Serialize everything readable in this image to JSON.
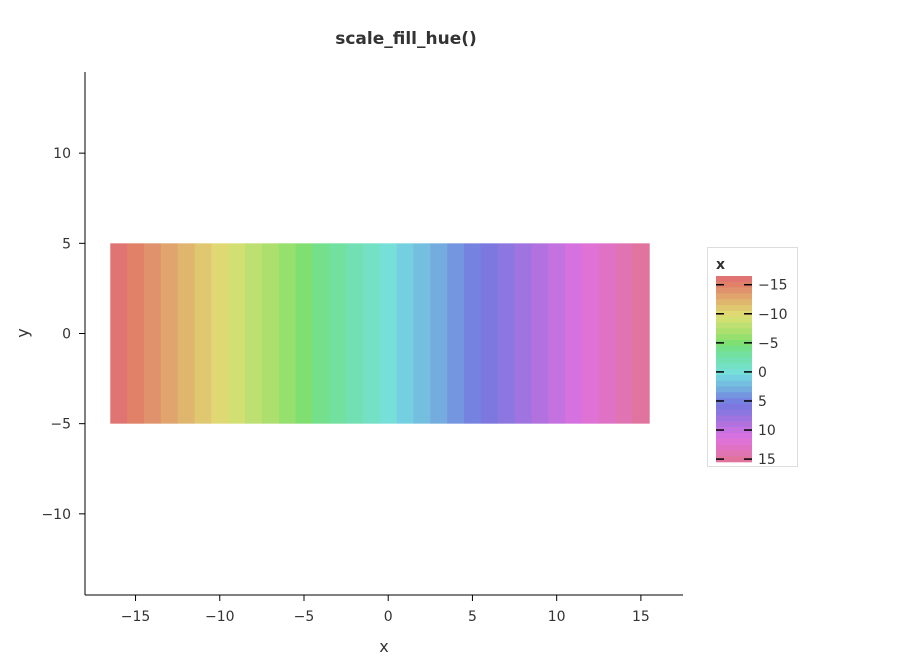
{
  "chart_data": {
    "type": "heatmap",
    "title": "scale_fill_hue()",
    "xlabel": "x",
    "ylabel": "y",
    "x": [
      -16,
      -15,
      -14,
      -13,
      -12,
      -11,
      -10,
      -9,
      -8,
      -7,
      -6,
      -5,
      -4,
      -3,
      -2,
      -1,
      0,
      1,
      2,
      3,
      4,
      5,
      6,
      7,
      8,
      9,
      10,
      11,
      12,
      13,
      14,
      15
    ],
    "y_range": [
      -5,
      5
    ],
    "xlim": [
      -18,
      17.5
    ],
    "ylim": [
      -14.5,
      14.5
    ],
    "xticks": [
      -15,
      -10,
      -5,
      0,
      5,
      10,
      15
    ],
    "xtick_labels": [
      "−15",
      "−10",
      "−5",
      "0",
      "5",
      "10",
      "15"
    ],
    "yticks": [
      -10,
      -5,
      0,
      5,
      10
    ],
    "ytick_labels": [
      "−10",
      "−5",
      "0",
      "5",
      "10"
    ],
    "colors": [
      "#e07472",
      "#e08168",
      "#e0926c",
      "#e0a46c",
      "#e0b56e",
      "#e0c870",
      "#e0d872",
      "#d2e072",
      "#bee072",
      "#acdf6e",
      "#96e06e",
      "#7fe071",
      "#74e08c",
      "#72e09f",
      "#72e0b2",
      "#74e0c4",
      "#76e0d8",
      "#74d0e0",
      "#74bee0",
      "#74ace0",
      "#7496e0",
      "#7682e0",
      "#7c78e0",
      "#8c76e0",
      "#9f74e0",
      "#b172e0",
      "#c472e0",
      "#d672e0",
      "#e072d6",
      "#e072c6",
      "#e074b2",
      "#e0749e"
    ],
    "legend": {
      "title": "x",
      "labels": [
        "−15",
        "−10",
        "−5",
        "0",
        "5",
        "10",
        "15"
      ],
      "values": [
        -15,
        -10,
        -5,
        0,
        5,
        10,
        15
      ],
      "placement": "right"
    },
    "grid": false
  }
}
